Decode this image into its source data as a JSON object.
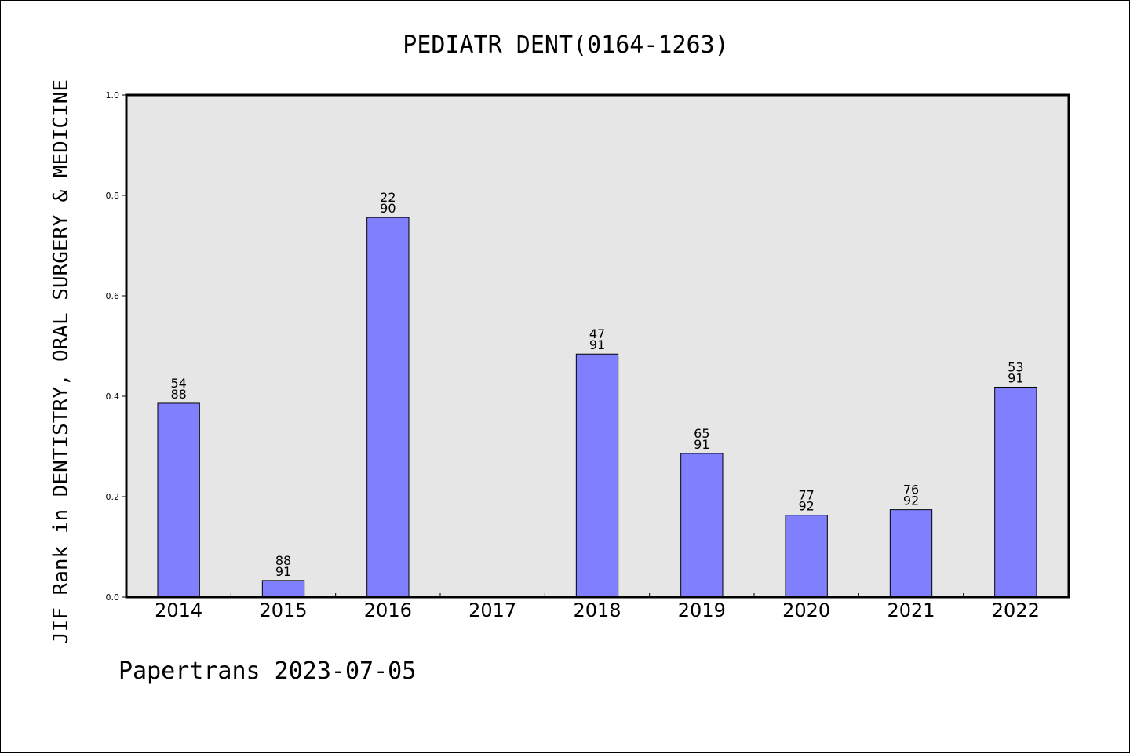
{
  "chart_data": {
    "type": "bar",
    "title": "PEDIATR DENT(0164-1263)",
    "ylabel": "JIF Rank in DENTISTRY, ORAL SURGERY & MEDICINE",
    "xlabel": "",
    "ylim": [
      0.0,
      1.0
    ],
    "yticks": [
      "0.0",
      "0.2",
      "0.4",
      "0.6",
      "0.8",
      "1.0"
    ],
    "categories": [
      "2014",
      "2015",
      "2016",
      "2017",
      "2018",
      "2019",
      "2020",
      "2021",
      "2022"
    ],
    "values": [
      0.386,
      0.033,
      0.756,
      null,
      0.484,
      0.286,
      0.163,
      0.174,
      0.418
    ],
    "ranks": [
      "54",
      "88",
      "22",
      "",
      "47",
      "65",
      "77",
      "76",
      "53"
    ],
    "totals": [
      "88",
      "91",
      "90",
      "",
      "91",
      "91",
      "92",
      "92",
      "91"
    ],
    "bar_color": "#8080ff",
    "plot_background": "#e6e6e6",
    "grid": false
  },
  "footer": "Papertrans 2023-07-05"
}
